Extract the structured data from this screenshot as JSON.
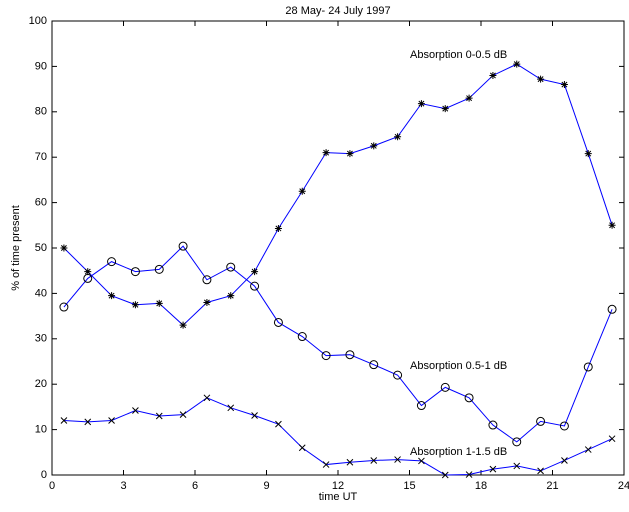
{
  "chart_data": {
    "type": "line",
    "title": "28 May- 24 July 1997",
    "x_label": "time UT",
    "y_label": "% of time present",
    "x": [
      0.5,
      1.5,
      2.5,
      3.5,
      4.5,
      5.5,
      6.5,
      7.5,
      8.5,
      9.5,
      10.5,
      11.5,
      12.5,
      13.5,
      14.5,
      15.5,
      16.5,
      17.5,
      18.5,
      19.5,
      20.5,
      21.5,
      22.5,
      23.5
    ],
    "series": [
      {
        "name": "Absorption 0-0.5 dB",
        "color": "#0000ff",
        "marker": "asterisk",
        "values": [
          50,
          44.8,
          39.5,
          37.5,
          37.8,
          33,
          38,
          39.5,
          44.8,
          54.3,
          62.5,
          71,
          70.8,
          72.5,
          74.5,
          81.8,
          80.7,
          83,
          88,
          90.5,
          87.2,
          86,
          70.8,
          55
        ]
      },
      {
        "name": "Absorption 0.5-1 dB",
        "color": "#0000ff",
        "marker": "circle",
        "values": [
          37,
          43.3,
          47,
          44.8,
          45.3,
          50.4,
          43,
          45.8,
          41.6,
          33.6,
          30.5,
          26.3,
          26.5,
          24.3,
          22,
          15.3,
          19.3,
          17,
          11,
          7.3,
          11.8,
          10.8,
          23.8,
          36.5
        ]
      },
      {
        "name": "Absorption 1-1.5 dB",
        "color": "#0000ff",
        "marker": "x",
        "values": [
          12,
          11.7,
          12,
          14.2,
          13,
          13.3,
          17,
          14.8,
          13.1,
          11.2,
          6,
          2.3,
          2.8,
          3.2,
          3.4,
          3.1,
          0,
          0.1,
          1.3,
          2,
          0.9,
          3.2,
          5.6,
          8
        ]
      }
    ],
    "xlim": [
      0,
      24
    ],
    "xticks": [
      0,
      3,
      6,
      9,
      12,
      15,
      18,
      21,
      24
    ],
    "ylim": [
      0,
      100
    ],
    "yticks": [
      0,
      10,
      20,
      30,
      40,
      50,
      60,
      70,
      80,
      90,
      100
    ],
    "grid": false
  }
}
